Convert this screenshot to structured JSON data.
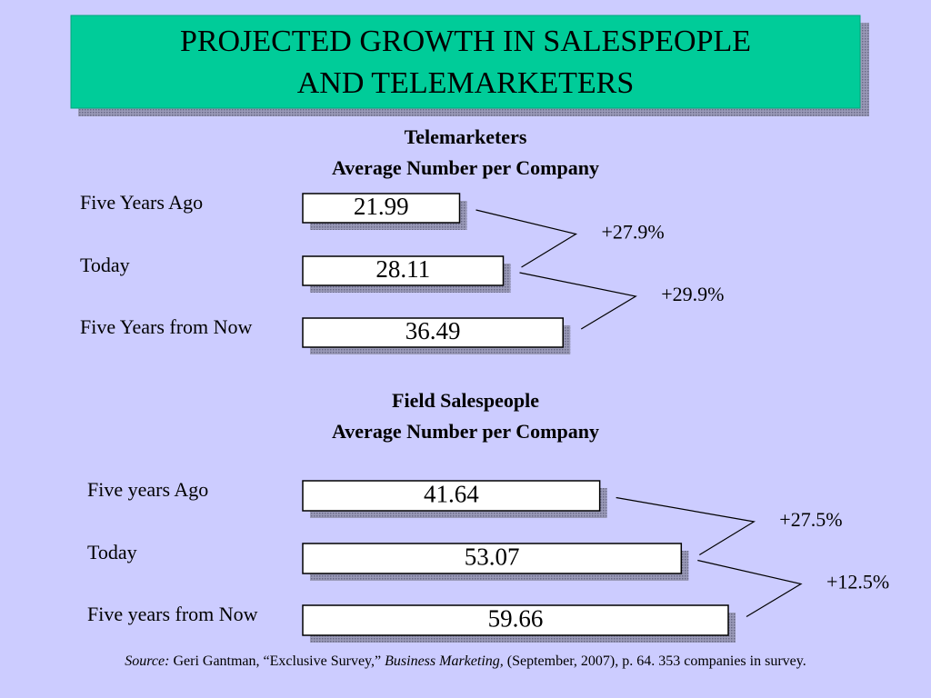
{
  "title_lines": [
    "PROJECTED GROWTH IN SALESPEOPLE",
    "AND TELEMARKETERS"
  ],
  "chart_data": [
    {
      "type": "bar",
      "title": "Telemarketers",
      "subtitle": "Average Number per Company",
      "categories": [
        "Five Years Ago",
        "Today",
        "Five Years from Now"
      ],
      "values": [
        21.99,
        28.11,
        36.49
      ],
      "color": "#ffffff",
      "annotations": [
        "+27.9%",
        "+29.9%"
      ]
    },
    {
      "type": "bar",
      "title": "Field Salespeople",
      "subtitle": "Average Number per Company",
      "categories": [
        "Five years Ago",
        "Today",
        "Five years from Now"
      ],
      "values": [
        41.64,
        53.07,
        59.66
      ],
      "color": "#ffffff",
      "annotations": [
        "+27.5%",
        "+12.5%"
      ]
    }
  ],
  "source": {
    "label": "Source:",
    "author": "Geri Gantman, “Exclusive Survey,”",
    "publication": "Business Marketing,",
    "rest": "(September, 2007), p. 64. 353 companies in survey."
  }
}
